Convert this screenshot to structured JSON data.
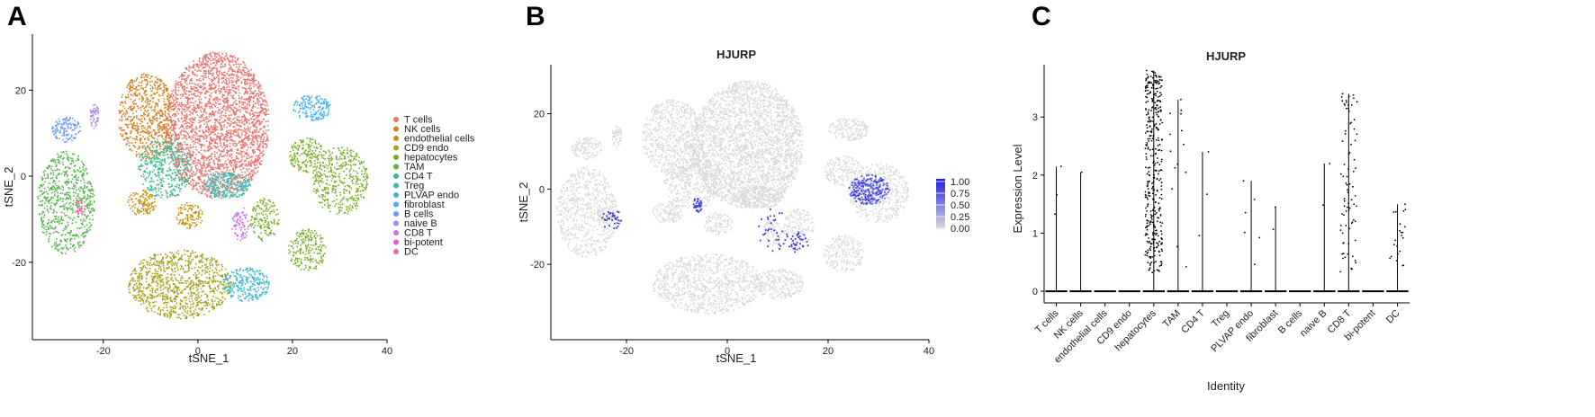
{
  "chart_data": [
    {
      "panel": "A",
      "type": "scatter",
      "title": "",
      "xlabel": "tSNE_1",
      "ylabel": "tSNE_2",
      "xlim": [
        -35,
        40
      ],
      "ylim": [
        -38,
        33
      ],
      "xticks": [
        -20,
        0,
        20,
        40
      ],
      "yticks": [
        -20,
        0,
        20
      ],
      "grid": false,
      "legend_position": "right",
      "legend": [
        {
          "name": "T cells",
          "color": "#e8736c"
        },
        {
          "name": "NK cells",
          "color": "#d57f1d"
        },
        {
          "name": "endothelial cells",
          "color": "#c58e10"
        },
        {
          "name": "CD9 endo",
          "color": "#a7a21c"
        },
        {
          "name": "hepatocytes",
          "color": "#7aae29"
        },
        {
          "name": "TAM",
          "color": "#52b447"
        },
        {
          "name": "CD4 T",
          "color": "#3fb98d"
        },
        {
          "name": "Treg",
          "color": "#3cbcb4"
        },
        {
          "name": "PLVAP endo",
          "color": "#3cb8d3"
        },
        {
          "name": "fibroblast",
          "color": "#42b0ee"
        },
        {
          "name": "B cells",
          "color": "#6a9bf5"
        },
        {
          "name": "naive B",
          "color": "#a986f2"
        },
        {
          "name": "CD8 T",
          "color": "#cc6fe9"
        },
        {
          "name": "bi-potent",
          "color": "#e260c8"
        },
        {
          "name": "DC",
          "color": "#ec68a0"
        }
      ],
      "clusters": [
        {
          "label": "T cells",
          "color": "#e8736c",
          "cx": 4,
          "cy": 12,
          "rx": 11,
          "ry": 17,
          "n": 2600
        },
        {
          "label": "NK cells",
          "color": "#d57f1d",
          "cx": -11,
          "cy": 14,
          "rx": 6,
          "ry": 10,
          "n": 650
        },
        {
          "label": "CD4 T",
          "color": "#3fb98d",
          "cx": -7,
          "cy": 2,
          "rx": 6,
          "ry": 7,
          "n": 420
        },
        {
          "label": "Treg",
          "color": "#3cbcb4",
          "cx": 6,
          "cy": -2,
          "rx": 5,
          "ry": 3,
          "n": 260
        },
        {
          "label": "TAM",
          "color": "#52b447",
          "cx": -28,
          "cy": -6,
          "rx": 6,
          "ry": 12,
          "n": 650
        },
        {
          "label": "hepatocytes",
          "color": "#7aae29",
          "cx": 30,
          "cy": -1,
          "rx": 6,
          "ry": 8,
          "n": 420
        },
        {
          "label": "hepatocytes",
          "color": "#7aae29",
          "cx": 23,
          "cy": 5,
          "rx": 4,
          "ry": 4,
          "n": 180
        },
        {
          "label": "hepatocytes",
          "color": "#7aae29",
          "cx": 23,
          "cy": -17,
          "rx": 4,
          "ry": 5,
          "n": 200
        },
        {
          "label": "hepatocytes",
          "color": "#7aae29",
          "cx": 14,
          "cy": -10,
          "rx": 3,
          "ry": 5,
          "n": 150
        },
        {
          "label": "CD9 endo",
          "color": "#a7a21c",
          "cx": -4,
          "cy": -25,
          "rx": 11,
          "ry": 8,
          "n": 950
        },
        {
          "label": "endothelial cells",
          "color": "#c58e10",
          "cx": -12,
          "cy": -6,
          "rx": 3,
          "ry": 3,
          "n": 120
        },
        {
          "label": "endothelial cells",
          "color": "#c58e10",
          "cx": -2,
          "cy": -9,
          "rx": 3,
          "ry": 3,
          "n": 100
        },
        {
          "label": "PLVAP endo",
          "color": "#3cb8d3",
          "cx": 10,
          "cy": -25,
          "rx": 5,
          "ry": 4,
          "n": 260
        },
        {
          "label": "fibroblast",
          "color": "#42b0ee",
          "cx": 24,
          "cy": 16,
          "rx": 4,
          "ry": 3,
          "n": 160
        },
        {
          "label": "B cells",
          "color": "#6a9bf5",
          "cx": -28,
          "cy": 11,
          "rx": 3,
          "ry": 3,
          "n": 120
        },
        {
          "label": "naive B",
          "color": "#a986f2",
          "cx": -22,
          "cy": 14,
          "rx": 1,
          "ry": 3,
          "n": 50
        },
        {
          "label": "CD8 T",
          "color": "#cc6fe9",
          "cx": 9,
          "cy": -11,
          "rx": 2,
          "ry": 4,
          "n": 80
        },
        {
          "label": "DC",
          "color": "#ec68a0",
          "cx": -25,
          "cy": -7,
          "rx": 1,
          "ry": 2,
          "n": 30
        }
      ]
    },
    {
      "panel": "B",
      "type": "scatter",
      "title": "HJURP",
      "xlabel": "tSNE_1",
      "ylabel": "tSNE_2",
      "xlim": [
        -35,
        40
      ],
      "ylim": [
        -40,
        33
      ],
      "xticks": [
        -20,
        0,
        20,
        40
      ],
      "yticks": [
        -20,
        0,
        20
      ],
      "grid": false,
      "colorbar": {
        "ticks": [
          "1.00",
          "0.75",
          "0.50",
          "0.25",
          "0.00"
        ],
        "low": "#dcdcdc",
        "high": "#1f1fe6"
      },
      "legend_position": "right",
      "expression_hotspot": {
        "cx": 28,
        "cy": 0,
        "level": 1.0
      }
    },
    {
      "panel": "C",
      "type": "violin",
      "title": "HJURP",
      "xlabel": "Identity",
      "ylabel": "Expression Level",
      "ylim": [
        -0.2,
        3.9
      ],
      "yticks": [
        0,
        1,
        2,
        3
      ],
      "grid": false,
      "categories": [
        "T cells",
        "NK cells",
        "endothelial cells",
        "CD9 endo",
        "hepatocytes",
        "TAM",
        "CD4 T",
        "Treg",
        "PLVAP endo",
        "fibroblast",
        "B cells",
        "naive B",
        "CD8 T",
        "bi-potent",
        "DC"
      ],
      "max_values": [
        2.15,
        2.05,
        0,
        0,
        3.8,
        3.3,
        2.4,
        0,
        1.9,
        1.45,
        0,
        2.2,
        3.4,
        0,
        1.5
      ],
      "point_counts": [
        3,
        1,
        0,
        0,
        380,
        14,
        3,
        0,
        6,
        2,
        0,
        2,
        80,
        0,
        22
      ]
    }
  ]
}
